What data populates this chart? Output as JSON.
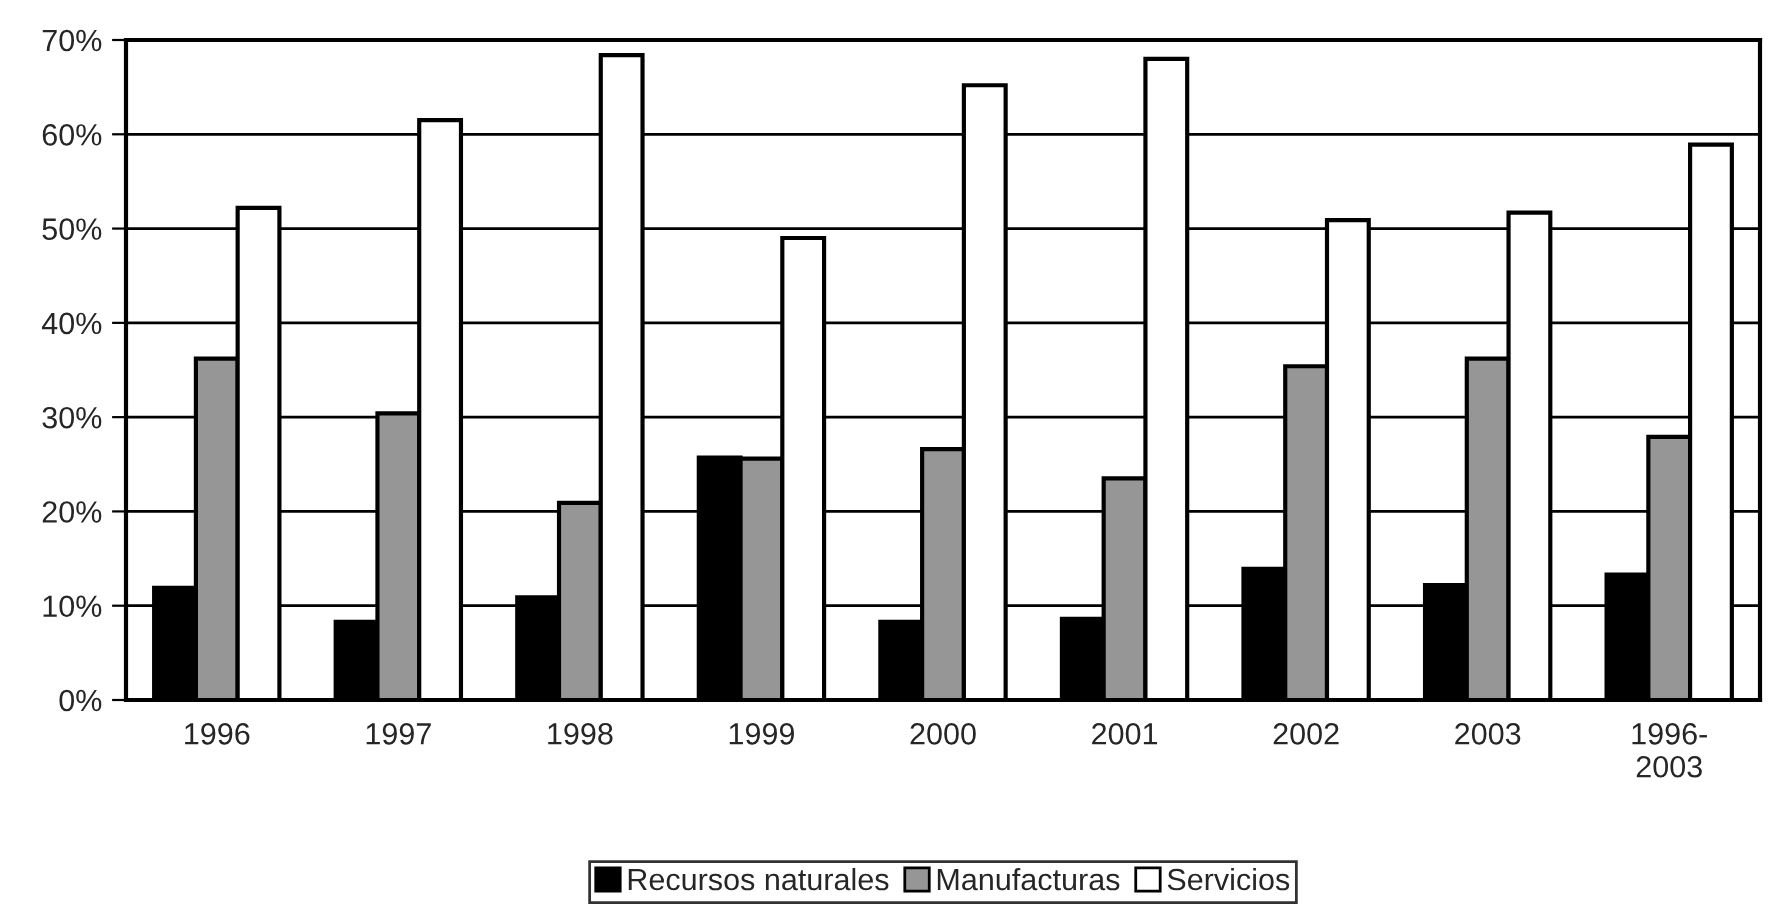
{
  "chart_data": {
    "type": "bar",
    "categories": [
      "1996",
      "1997",
      "1998",
      "1999",
      "2000",
      "2001",
      "2002",
      "2003",
      "1996-\n2003"
    ],
    "series": [
      {
        "name": "Recursos naturales",
        "color": "#000000",
        "values": [
          11.9,
          8.3,
          10.9,
          25.7,
          8.3,
          8.6,
          13.9,
          12.2,
          13.3
        ]
      },
      {
        "name": "Manufacturas",
        "color": "#969696",
        "values": [
          36.2,
          30.4,
          20.9,
          25.6,
          26.6,
          23.5,
          35.4,
          36.2,
          27.9
        ]
      },
      {
        "name": "Servicios",
        "color": "#ffffff",
        "values": [
          52.2,
          61.5,
          68.4,
          49.0,
          65.2,
          68.0,
          50.9,
          51.7,
          58.9
        ]
      }
    ],
    "ylim": [
      0,
      70
    ],
    "yticks": [
      {
        "value": 0,
        "label": "0%"
      },
      {
        "value": 10,
        "label": "10%"
      },
      {
        "value": 20,
        "label": "20%"
      },
      {
        "value": 30,
        "label": "30%"
      },
      {
        "value": 40,
        "label": "40%"
      },
      {
        "value": 50,
        "label": "50%"
      },
      {
        "value": 60,
        "label": "60%"
      },
      {
        "value": 70,
        "label": "70%"
      }
    ],
    "grid": "y",
    "legend": "bottom"
  }
}
